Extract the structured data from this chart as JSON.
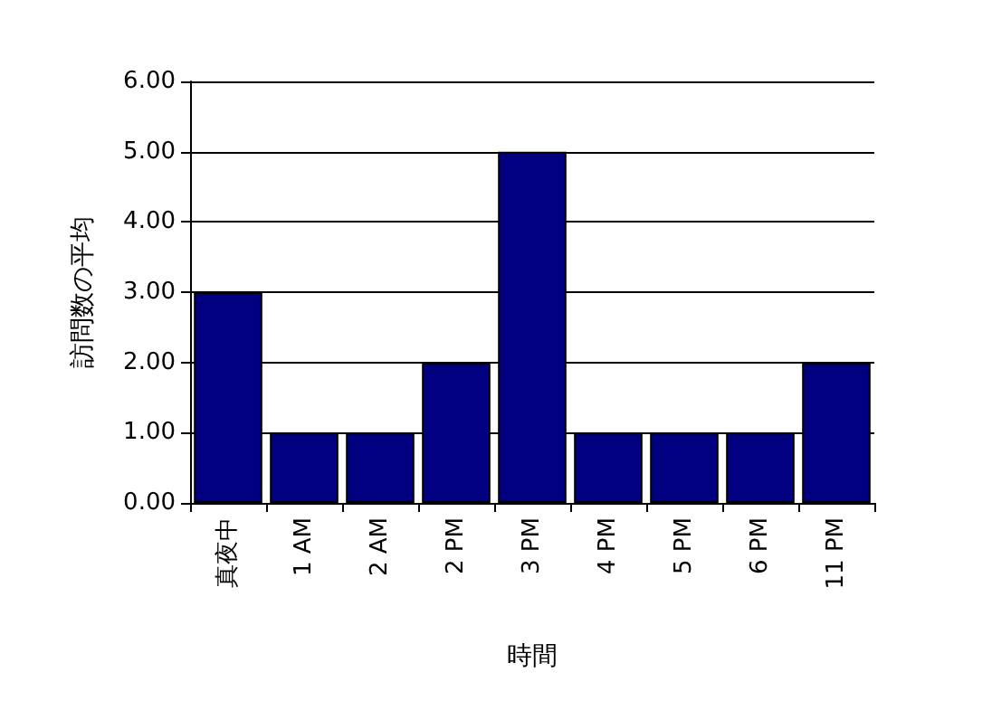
{
  "chart_data": {
    "type": "bar",
    "xlabel": "時間",
    "ylabel": "訪問数の平均",
    "categories": [
      "真夜中",
      "1 AM",
      "2 AM",
      "2 PM",
      "3 PM",
      "4 PM",
      "5 PM",
      "6 PM",
      "11 PM"
    ],
    "values": [
      3,
      1,
      1,
      2,
      5,
      1,
      1,
      1,
      2
    ],
    "color": "#000080",
    "ylim": [
      0,
      6
    ],
    "yticks": [
      {
        "value": 0,
        "label": "0.00"
      },
      {
        "value": 1,
        "label": "1.00"
      },
      {
        "value": 2,
        "label": "2.00"
      },
      {
        "value": 3,
        "label": "3.00"
      },
      {
        "value": 4,
        "label": "4.00"
      },
      {
        "value": 5,
        "label": "5.00"
      },
      {
        "value": 6,
        "label": "6.00"
      }
    ],
    "grid": "y"
  }
}
